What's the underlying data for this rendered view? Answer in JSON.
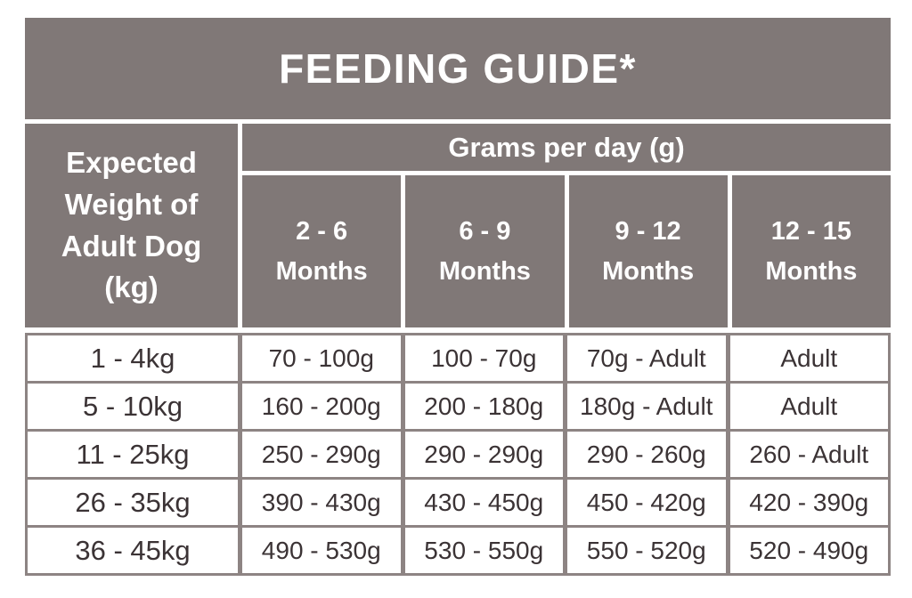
{
  "chart_data": {
    "type": "table",
    "title": "FEEDING GUIDE*",
    "row_header": "Expected Weight of Adult Dog (kg)",
    "column_group_header": "Grams per day (g)",
    "columns": [
      {
        "range": "2 - 6",
        "unit": "Months"
      },
      {
        "range": "6 - 9",
        "unit": "Months"
      },
      {
        "range": "9 - 12",
        "unit": "Months"
      },
      {
        "range": "12 - 15",
        "unit": "Months"
      }
    ],
    "rows": [
      {
        "weight": "1 - 4kg",
        "values": [
          "70 - 100g",
          "100 - 70g",
          "70g - Adult",
          "Adult"
        ]
      },
      {
        "weight": "5 - 10kg",
        "values": [
          "160 - 200g",
          "200 - 180g",
          "180g - Adult",
          "Adult"
        ]
      },
      {
        "weight": "11 - 25kg",
        "values": [
          "250 - 290g",
          "290 - 290g",
          "290 - 260g",
          "260 - Adult"
        ]
      },
      {
        "weight": "26 - 35kg",
        "values": [
          "390 - 430g",
          "430 - 450g",
          "450 - 420g",
          "420 - 390g"
        ]
      },
      {
        "weight": "36 - 45kg",
        "values": [
          "490 - 530g",
          "530 - 550g",
          "550 - 520g",
          "520 - 490g"
        ]
      }
    ],
    "layout": {
      "header_background": "#807877",
      "header_text_color": "#ffffff",
      "border_color": "#8d8483",
      "body_text_color": "#3b3335",
      "body_background": "#ffffff"
    }
  }
}
